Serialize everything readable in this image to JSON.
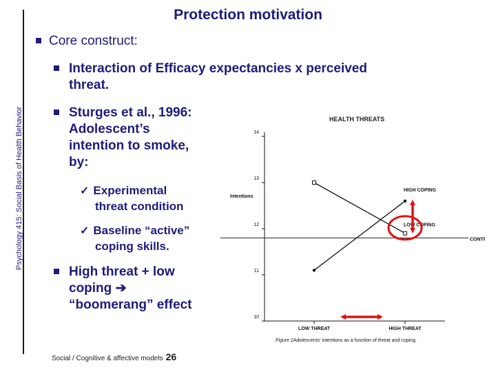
{
  "slide": {
    "title": "Protection motivation",
    "side_label": "Psychology 415: Social Basis of Health Behavior",
    "core_construct": "Core construct:",
    "interaction_line1": "Interaction of Efficacy expectancies x perceived",
    "interaction_line2": "threat.",
    "sturges_lines": [
      "Sturges et al., 1996:",
      "Adolescent’s",
      "intention to smoke,",
      "by:"
    ],
    "experimental_lines": [
      "Experimental",
      "threat condition"
    ],
    "baseline_lines": [
      "Baseline “active”",
      "coping skills."
    ],
    "high_threat_lines": [
      "High threat + low",
      "coping",
      "“boomerang” effect"
    ],
    "footer_text": "Social / Cognitive & affective models",
    "page_number": "26"
  },
  "chart_data": {
    "type": "line",
    "title": "HEALTH THREATS",
    "ylabel": "Intentions",
    "ylim": [
      10,
      14
    ],
    "yticks": [
      "10",
      "11",
      "12",
      "13",
      "14"
    ],
    "categories": [
      "LOW THREAT",
      "HIGH THREAT"
    ],
    "series": [
      {
        "name": "HIGH COPING",
        "values": [
          11.1,
          12.6
        ]
      },
      {
        "name": "LOW COPING",
        "values": [
          13.0,
          11.9
        ]
      }
    ],
    "reference_line": {
      "name": "CONTROL",
      "value": 11.8
    },
    "caption_label": "Figure 2.",
    "caption_text": "Adolescents' intentions as a function of threat and coping.",
    "annotation_color": "#e01010"
  }
}
